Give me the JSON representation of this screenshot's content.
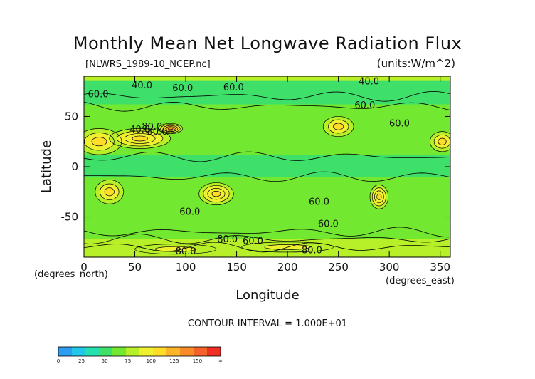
{
  "chart_data": {
    "type": "heatmap",
    "title": "Monthly Mean Net Longwave Radiation Flux",
    "source_label": "[NLWRS_1989-10_NCEP.nc]",
    "units_label": "(units:W/m^2)",
    "xlabel": "Longitude",
    "ylabel": "Latitude",
    "x_unit_label": "(degrees_east)",
    "y_unit_label": "(degrees_north)",
    "xlim": [
      0,
      360
    ],
    "ylim": [
      -90,
      90
    ],
    "x_ticks": [
      0,
      50,
      100,
      150,
      200,
      250,
      300,
      350
    ],
    "y_ticks": [
      50,
      0,
      -50
    ],
    "contour_interval_text": "CONTOUR INTERVAL = 1.000E+01",
    "contour_labels": [
      {
        "text": "60.0",
        "lon": 14,
        "lat": 69
      },
      {
        "text": "40.0",
        "lon": 57,
        "lat": 78
      },
      {
        "text": "60.0",
        "lon": 97,
        "lat": 75
      },
      {
        "text": "40.0",
        "lon": 280,
        "lat": 82
      },
      {
        "text": "60.0",
        "lon": 147,
        "lat": 76
      },
      {
        "text": "60.0",
        "lon": 276,
        "lat": 58
      },
      {
        "text": "60.0",
        "lon": 310,
        "lat": 40
      },
      {
        "text": "80.0",
        "lon": 67,
        "lat": 37
      },
      {
        "text": "80.0",
        "lon": 72,
        "lat": 32
      },
      {
        "text": "40.0",
        "lon": 55,
        "lat": 34
      },
      {
        "text": "60.0",
        "lon": 104,
        "lat": -48
      },
      {
        "text": "60.0",
        "lon": 231,
        "lat": -38
      },
      {
        "text": "60.0",
        "lon": 240,
        "lat": -60
      },
      {
        "text": "80.0",
        "lon": 141,
        "lat": -75
      },
      {
        "text": "60.0",
        "lon": 166,
        "lat": -77
      },
      {
        "text": "80.0",
        "lon": 100,
        "lat": -87
      },
      {
        "text": "80.0",
        "lon": 224,
        "lat": -86
      }
    ],
    "colorbar": {
      "ticks": [
        "0",
        "25",
        "50",
        "75",
        "100",
        "125",
        "150",
        "∞"
      ],
      "colors": [
        "#2e9cf0",
        "#21c8e8",
        "#25e0b0",
        "#3fe06a",
        "#72e830",
        "#b7f028",
        "#eef030",
        "#ffdc28",
        "#fcb428",
        "#f88c28",
        "#f4622a",
        "#ef2e24"
      ]
    },
    "bands": [
      {
        "lon": [
          0,
          360
        ],
        "lat": [
          -72,
          72
        ],
        "value": 60
      },
      {
        "lon": [
          0,
          360
        ],
        "lat": [
          62,
          86
        ],
        "value": 45
      },
      {
        "lon": [
          0,
          360
        ],
        "lat": [
          -10,
          12
        ],
        "value": 45
      },
      {
        "lon": [
          0,
          360
        ],
        "lat": [
          -90,
          -72
        ],
        "value": 75
      },
      {
        "lon": [
          0,
          360
        ],
        "lat": [
          86,
          90
        ],
        "value": 80
      }
    ],
    "hotspots": [
      {
        "lon": 15,
        "lat": 25,
        "rx": 22,
        "ry": 13,
        "value": 110
      },
      {
        "lon": 55,
        "lat": 28,
        "rx": 30,
        "ry": 10,
        "value": 115
      },
      {
        "lon": 85,
        "lat": 38,
        "rx": 12,
        "ry": 5,
        "value": 140
      },
      {
        "lon": 25,
        "lat": -25,
        "rx": 14,
        "ry": 12,
        "value": 110
      },
      {
        "lon": 130,
        "lat": -27,
        "rx": 17,
        "ry": 11,
        "value": 115
      },
      {
        "lon": 250,
        "lat": 40,
        "rx": 15,
        "ry": 10,
        "value": 105
      },
      {
        "lon": 290,
        "lat": -30,
        "rx": 9,
        "ry": 12,
        "value": 115
      },
      {
        "lon": 352,
        "lat": 25,
        "rx": 12,
        "ry": 10,
        "value": 110
      },
      {
        "lon": 200,
        "lat": -80,
        "rx": 45,
        "ry": 5,
        "value": 95
      },
      {
        "lon": 90,
        "lat": -82,
        "rx": 40,
        "ry": 5,
        "value": 90
      }
    ]
  }
}
